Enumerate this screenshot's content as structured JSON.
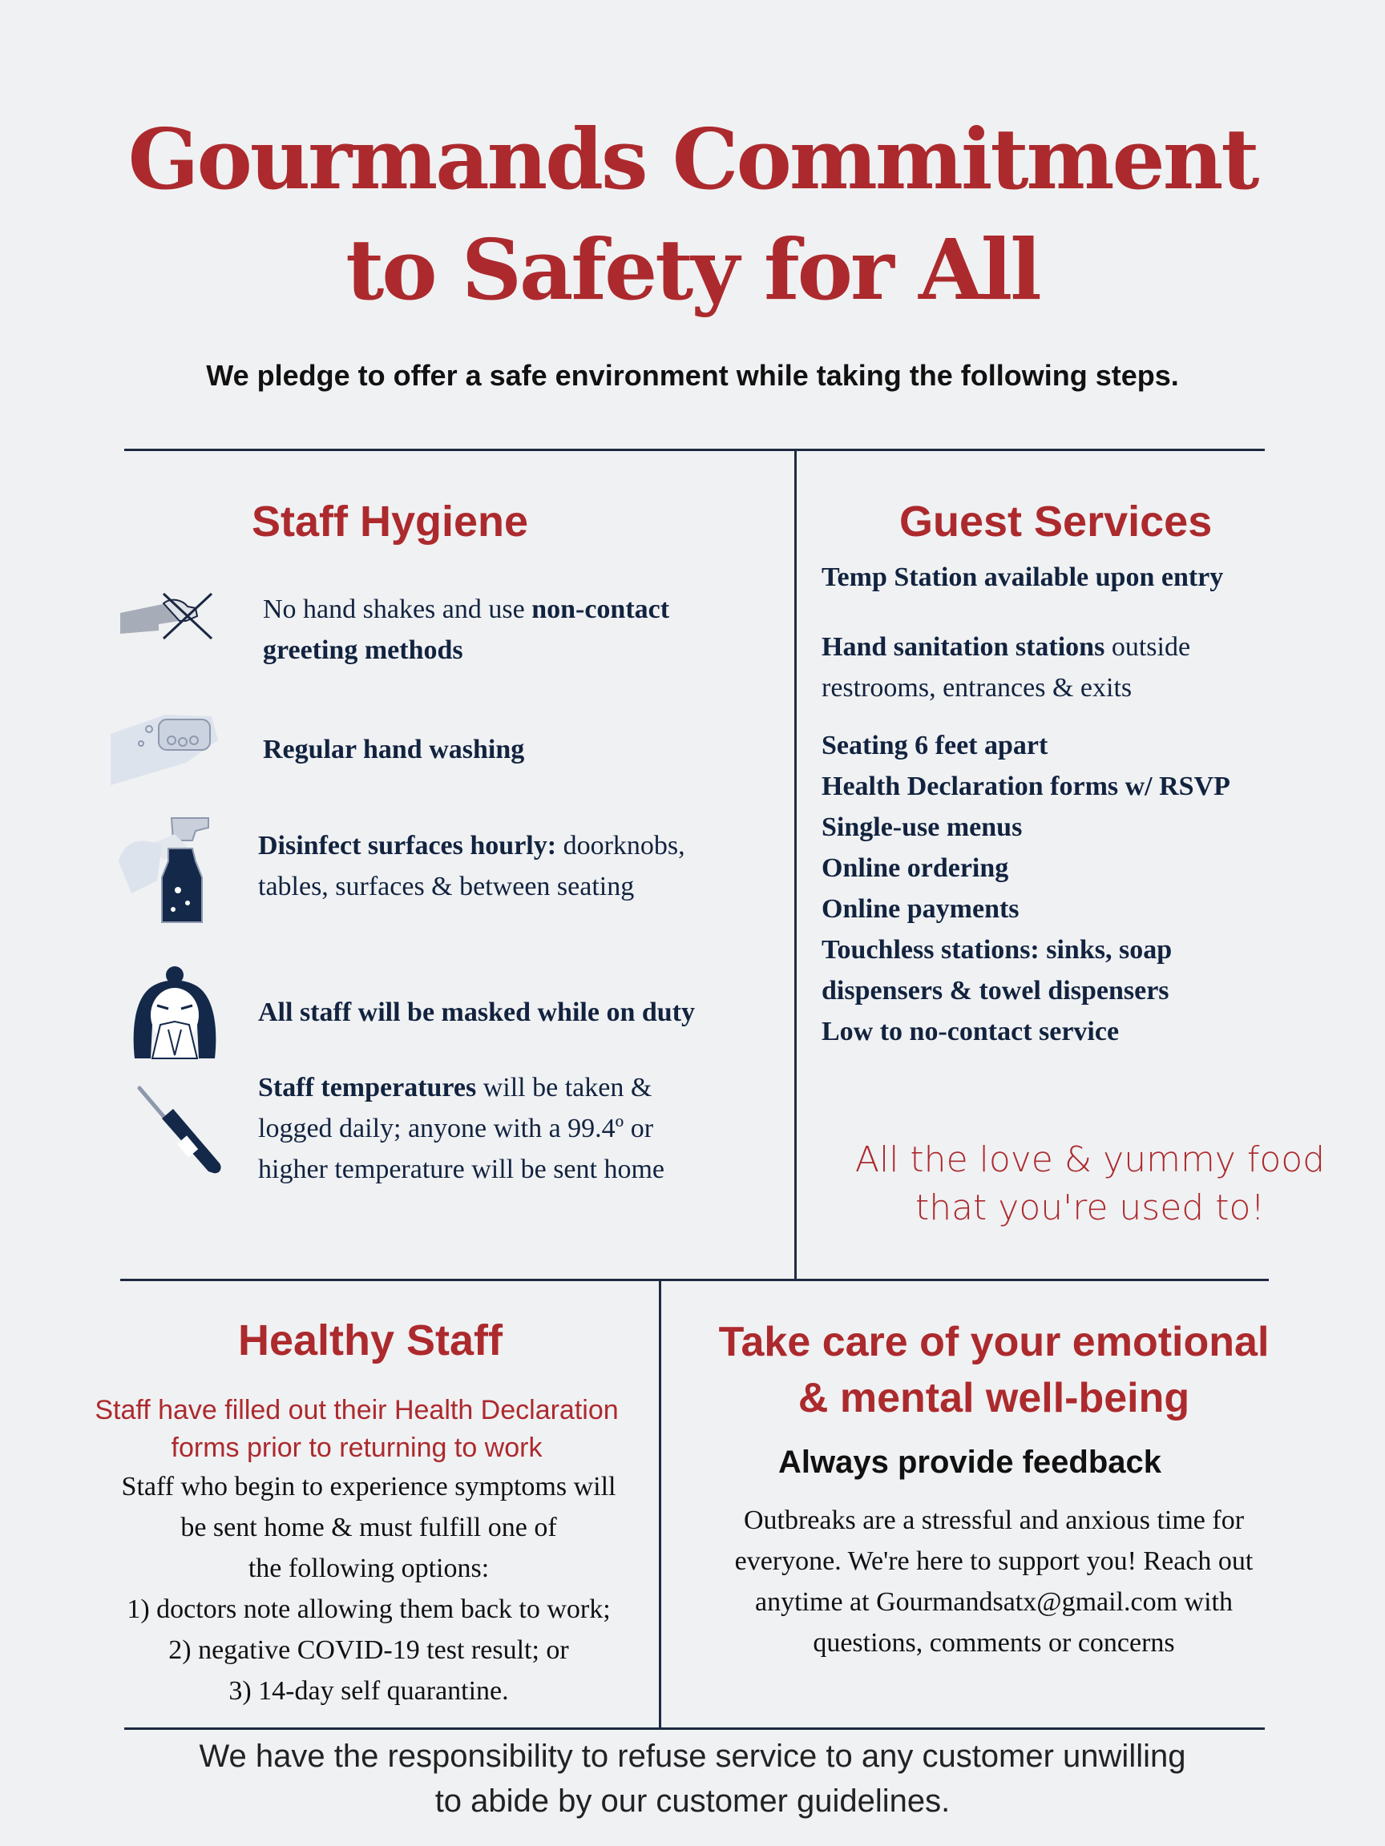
{
  "header": {
    "title_line1": "Gourmands Commitment",
    "title_line2": "to Safety for All",
    "subtitle": "We pledge to offer a safe environment while taking the following steps."
  },
  "staff_hygiene": {
    "heading": "Staff Hygiene",
    "items": [
      {
        "icon": "no-handshake-icon",
        "bold_a": "",
        "text_a": "No hand shakes and use ",
        "bold_b": "non-contact",
        "line2_bold": "greeting methods",
        "line2": ""
      },
      {
        "icon": "hand-washing-icon",
        "bold": "Regular hand washing"
      },
      {
        "icon": "spray-bottle-icon",
        "line1_bold": "Disinfect surfaces hourly:",
        "line1": " doorknobs,",
        "line2": "tables, surfaces & between seating"
      },
      {
        "icon": "masked-person-icon",
        "bold": "All staff will be masked while on duty"
      },
      {
        "icon": "thermometer-icon",
        "line1_bold": "Staff temperatures",
        "line1": " will be taken &",
        "line2": "logged daily; anyone with a 99.4º or",
        "line3": "higher temperature will be sent home"
      }
    ]
  },
  "guest_services": {
    "heading": "Guest Services",
    "temp_station": "Temp Station available upon entry",
    "hand_sanitation_bold": "Hand sanitation stations",
    "hand_sanitation_rest": " outside",
    "hand_sanitation_line2": "restrooms, entrances & exits",
    "list": [
      "Seating 6 feet apart",
      "Health Declaration forms w/ RSVP",
      "Single-use menus",
      "Online ordering",
      "Online payments",
      "Touchless stations: sinks,  soap",
      "dispensers & towel dispensers",
      "Low to no-contact service"
    ],
    "love_line1": "All the love & yummy food",
    "love_line2": "that you're used to!"
  },
  "healthy_staff": {
    "heading": "Healthy Staff",
    "pink_line1": "Staff have filled out their Health Declaration",
    "pink_line2": "forms prior to returning to work",
    "lines": [
      "Staff who begin to experience symptoms will",
      "be sent home & must fulfill one of",
      "the following options:",
      "1) doctors note allowing them back to work;",
      "2) negative COVID-19 test result; or",
      "3) 14-day self quarantine."
    ]
  },
  "wellbeing": {
    "heading_line1": "Take care of your emotional",
    "heading_line2": "& mental well-being",
    "subheading": "Always provide feedback",
    "lines": [
      "Outbreaks are a stressful and anxious time for",
      "everyone. We're here to support you! Reach out",
      "anytime at Gourmandsatx@gmail.com with",
      "questions, comments or concerns"
    ]
  },
  "footer": {
    "line1": "We have the responsibility to refuse service to any customer unwilling",
    "line2": "to abide by our customer guidelines."
  },
  "colors": {
    "accent": "#ac2a2d",
    "navy": "#12233f",
    "background": "#f0f1f3"
  }
}
